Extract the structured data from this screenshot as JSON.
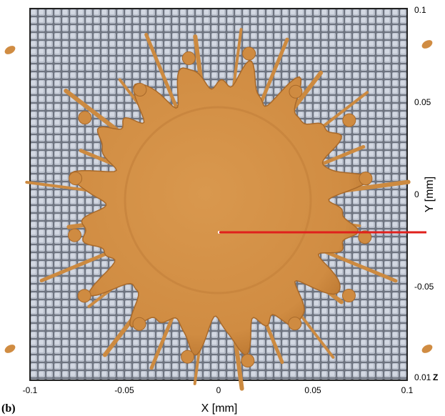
{
  "panel_label": "(b)",
  "x_axis": {
    "label": "X [mm]",
    "ticks": [
      "-0.1",
      "-0.05",
      "0",
      "0.05",
      "0.1"
    ]
  },
  "y_axis": {
    "label": "Y [mm]",
    "ticks": [
      "0.1",
      "0.05",
      "0",
      "-0.05"
    ]
  },
  "z_axis": {
    "tick": "0.01",
    "label": "Z"
  }
}
